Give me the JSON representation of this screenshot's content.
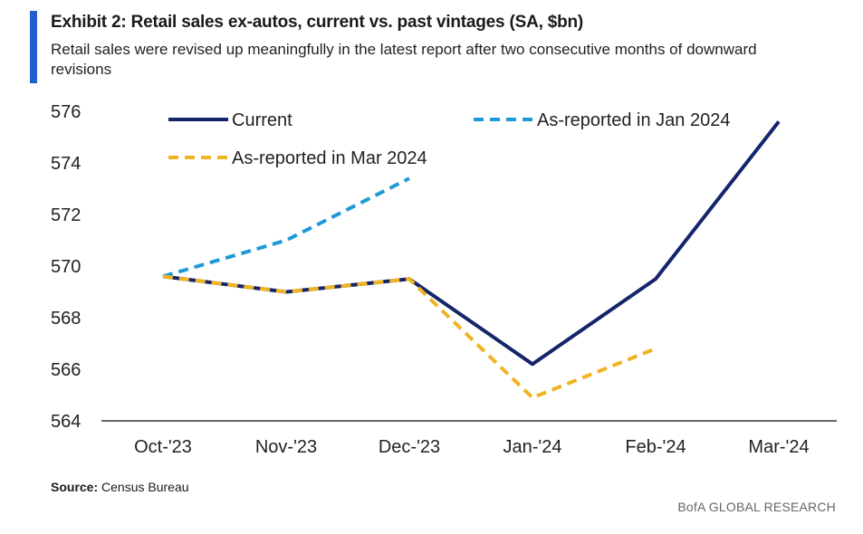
{
  "header": {
    "title": "Exhibit 2: Retail sales ex-autos, current vs. past vintages (SA, $bn)",
    "subtitle": "Retail sales were revised up meaningfully in the latest report after two consecutive months of downward revisions"
  },
  "footer": {
    "source_label": "Source:",
    "source_text": "Census Bureau",
    "brand": "BofA GLOBAL RESEARCH"
  },
  "colors": {
    "current": "#14256b",
    "jan2024": "#1e9bd7",
    "mar2024": "#f0b323",
    "accent": "#1f5fd1"
  },
  "chart_data": {
    "type": "line",
    "categories": [
      "Oct-'23",
      "Nov-'23",
      "Dec-'23",
      "Jan-'24",
      "Feb-'24",
      "Mar-'24"
    ],
    "ylim": [
      564,
      576
    ],
    "yticks": [
      564,
      566,
      568,
      570,
      572,
      574,
      576
    ],
    "legend_position": "top",
    "grid": false,
    "series": [
      {
        "name": "Current",
        "style": "solid",
        "values": [
          569.6,
          569.0,
          569.5,
          566.2,
          569.5,
          575.6
        ]
      },
      {
        "name": "As-reported in Jan 2024",
        "style": "dashed",
        "values": [
          569.6,
          571.0,
          573.4,
          null,
          null,
          null
        ]
      },
      {
        "name": "As-reported in Mar 2024",
        "style": "dashed",
        "values": [
          569.6,
          569.0,
          569.5,
          564.9,
          566.8,
          null
        ]
      }
    ]
  }
}
